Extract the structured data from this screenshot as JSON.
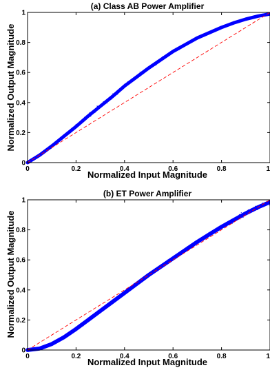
{
  "chart_data": [
    {
      "type": "scatter",
      "title": "(a) Class AB Power Amplifier",
      "xlabel": "Normalized Input Magnitude",
      "ylabel": "Normalized Output Magnitude",
      "xlim": [
        0,
        1
      ],
      "ylim": [
        0,
        1
      ],
      "xticks": [
        0,
        0.2,
        0.4,
        0.6,
        0.8,
        1
      ],
      "xtick_labels": [
        "0",
        "0.2",
        "0.4",
        "0.6",
        "0.8",
        "1"
      ],
      "yticks": [
        0,
        0.2,
        0.4,
        0.6,
        0.8,
        1
      ],
      "ytick_labels": [
        "0",
        "0.2",
        "0.4",
        "0.6",
        "0.8",
        "1"
      ],
      "grid": false,
      "series": [
        {
          "marker": "dot",
          "color": "#0000ff",
          "x": [
            0,
            0.05,
            0.1,
            0.15,
            0.2,
            0.25,
            0.3,
            0.35,
            0.4,
            0.45,
            0.5,
            0.55,
            0.6,
            0.65,
            0.7,
            0.75,
            0.8,
            0.85,
            0.9,
            0.95,
            1.0
          ],
          "y": [
            0,
            0.05,
            0.11,
            0.175,
            0.24,
            0.31,
            0.375,
            0.44,
            0.51,
            0.57,
            0.63,
            0.685,
            0.74,
            0.785,
            0.83,
            0.865,
            0.9,
            0.93,
            0.955,
            0.975,
            0.99
          ],
          "spread": [
            0.005,
            0.01,
            0.012,
            0.014,
            0.016,
            0.017,
            0.017,
            0.017,
            0.016,
            0.015,
            0.014,
            0.013,
            0.012,
            0.011,
            0.01,
            0.009,
            0.008,
            0.007,
            0.006,
            0.005,
            0.004
          ]
        },
        {
          "line": "dashed",
          "color": "#ff0000",
          "x": [
            0,
            1
          ],
          "y": [
            0,
            1
          ]
        }
      ]
    },
    {
      "type": "scatter",
      "title": "(b) ET Power Amplifier",
      "xlabel": "Normalized Input Magnitude",
      "ylabel": "Normalized Output Magnitude",
      "xlim": [
        0,
        1
      ],
      "ylim": [
        0,
        1
      ],
      "xticks": [
        0,
        0.2,
        0.4,
        0.6,
        0.8,
        1
      ],
      "xtick_labels": [
        "0",
        "0.2",
        "0.4",
        "0.6",
        "0.8",
        "1"
      ],
      "yticks": [
        0,
        0.2,
        0.4,
        0.6,
        0.8,
        1
      ],
      "ytick_labels": [
        "0",
        "0.2",
        "0.4",
        "0.6",
        "0.8",
        "1"
      ],
      "grid": false,
      "series": [
        {
          "marker": "dot",
          "color": "#0000ff",
          "x": [
            0,
            0.05,
            0.1,
            0.15,
            0.2,
            0.25,
            0.3,
            0.35,
            0.4,
            0.45,
            0.5,
            0.55,
            0.6,
            0.65,
            0.7,
            0.75,
            0.8,
            0.85,
            0.9,
            0.95,
            1.0
          ],
          "y": [
            0,
            0.01,
            0.04,
            0.085,
            0.14,
            0.2,
            0.26,
            0.32,
            0.38,
            0.44,
            0.5,
            0.555,
            0.61,
            0.665,
            0.72,
            0.77,
            0.82,
            0.865,
            0.91,
            0.95,
            0.985
          ],
          "spread": [
            0.004,
            0.006,
            0.008,
            0.01,
            0.012,
            0.013,
            0.013,
            0.013,
            0.013,
            0.012,
            0.012,
            0.012,
            0.012,
            0.012,
            0.013,
            0.014,
            0.016,
            0.018,
            0.02,
            0.022,
            0.024
          ]
        },
        {
          "line": "dashed",
          "color": "#ff0000",
          "x": [
            0,
            1
          ],
          "y": [
            0,
            1
          ]
        }
      ]
    }
  ]
}
